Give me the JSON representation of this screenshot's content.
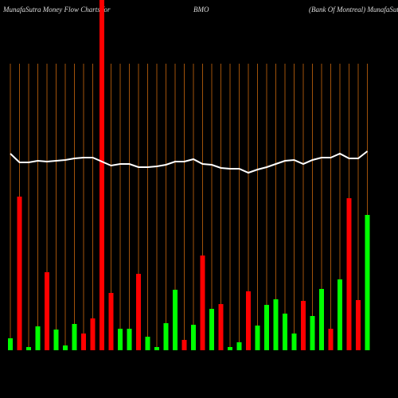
{
  "chart_data": {
    "type": "bar",
    "title_parts": [
      "MunafaSutra  Money Flow  Charts for",
      "BMO",
      "(Bank Of Montreal) MunafaSutra.com"
    ],
    "values": [
      15,
      193,
      4,
      30,
      98,
      26,
      6,
      33,
      21,
      40,
      440,
      72,
      27,
      27,
      96,
      17,
      4,
      34,
      76,
      13,
      32,
      119,
      52,
      58,
      4,
      10,
      74,
      31,
      57,
      64,
      46,
      21,
      62,
      43,
      77,
      27,
      89,
      191,
      63,
      170
    ],
    "colors": [
      "#00ff00",
      "#ff0000",
      "#00ff00",
      "#00ff00",
      "#ff0000",
      "#00ff00",
      "#00ff00",
      "#00ff00",
      "#ff0000",
      "#ff0000",
      "#ff0000",
      "#ff0000",
      "#00ff00",
      "#00ff00",
      "#ff0000",
      "#00ff00",
      "#00ff00",
      "#00ff00",
      "#00ff00",
      "#ff0000",
      "#00ff00",
      "#ff0000",
      "#00ff00",
      "#ff0000",
      "#00ff00",
      "#00ff00",
      "#ff0000",
      "#00ff00",
      "#00ff00",
      "#00ff00",
      "#00ff00",
      "#00ff00",
      "#ff0000",
      "#00ff00",
      "#00ff00",
      "#ff0000",
      "#00ff00",
      "#ff0000",
      "#ff0000",
      "#00ff00"
    ],
    "line_values": [
      247,
      236,
      236,
      238,
      237,
      238,
      239,
      241,
      242,
      242,
      237,
      232,
      234,
      234,
      230,
      230,
      231,
      233,
      237,
      237,
      240,
      234,
      233,
      229,
      228,
      228,
      223,
      227,
      230,
      234,
      238,
      239,
      234,
      239,
      242,
      242,
      247,
      241,
      241,
      250
    ],
    "line_color": "#ffffff",
    "ylim": [
      0,
      440
    ],
    "grid": true,
    "grid_color": "#a0520a"
  }
}
